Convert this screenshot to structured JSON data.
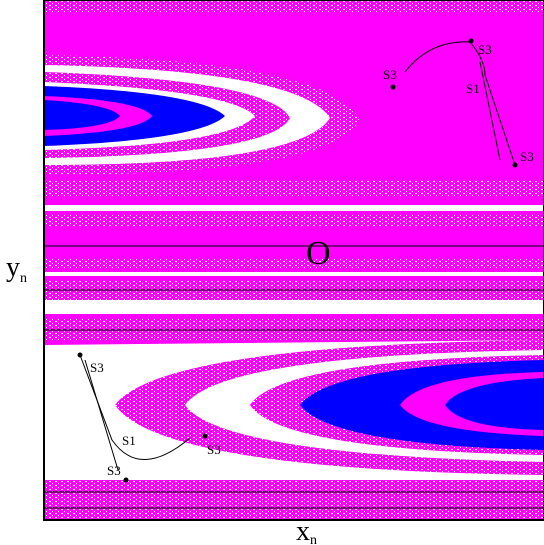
{
  "origin_label": "O",
  "axes": {
    "x_label": {
      "main": "x",
      "sub": "n"
    },
    "y_label": {
      "main": "y",
      "sub": "n"
    }
  },
  "points": [
    {
      "label": "S3"
    },
    {
      "label": "S3"
    },
    {
      "label": "S1"
    },
    {
      "label": "S3"
    },
    {
      "label": "S3"
    },
    {
      "label": "S1"
    },
    {
      "label": "S3"
    },
    {
      "label": "S3"
    }
  ]
}
